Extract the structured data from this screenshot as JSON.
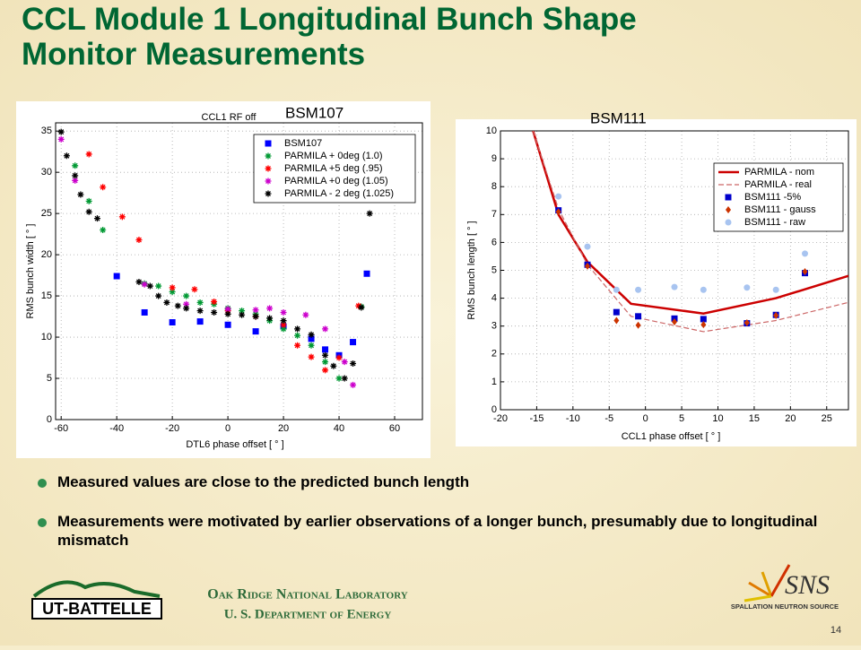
{
  "title": "CCL Module 1 Longitudinal Bunch Shape Monitor Measurements",
  "chart_data": [
    {
      "type": "scatter",
      "label": "BSM107",
      "title": "CCL1 RF off",
      "xlabel": "DTL6 phase offset [ ° ]",
      "ylabel": "RMS bunch width [ ° ]",
      "xlim": [
        -62,
        70
      ],
      "ylim": [
        0,
        36
      ],
      "xticks": [
        -60,
        -40,
        -20,
        0,
        20,
        40,
        60
      ],
      "yticks": [
        0,
        5,
        10,
        15,
        20,
        25,
        30,
        35
      ],
      "grid": true,
      "legend": "upper right",
      "series": [
        {
          "name": "BSM107",
          "color": "#0000ff",
          "marker": "square",
          "x": [
            -40,
            -30,
            -20,
            -10,
            0,
            10,
            20,
            30,
            35,
            40,
            45,
            50
          ],
          "values": [
            17.4,
            13,
            11.8,
            11.9,
            11.5,
            10.7,
            11.3,
            9.8,
            8.5,
            7.8,
            9.4,
            17.7
          ]
        },
        {
          "name": "PARMILA + 0deg (1.0)",
          "color": "#009933",
          "marker": "star",
          "x": [
            -55,
            -50,
            -45,
            -30,
            -25,
            -20,
            -15,
            -10,
            -5,
            0,
            5,
            10,
            15,
            20,
            25,
            30,
            35,
            40,
            48
          ],
          "values": [
            30.8,
            26.5,
            23,
            16.5,
            16.2,
            15.5,
            15,
            14.2,
            14,
            13.5,
            13.2,
            12.8,
            12,
            11,
            10.2,
            9,
            7,
            5,
            13.7
          ]
        },
        {
          "name": "PARMILA +5 deg (.95)",
          "color": "#ff0000",
          "marker": "star",
          "x": [
            -50,
            -45,
            -38,
            -32,
            -20,
            -12,
            -5,
            0,
            10,
            20,
            25,
            30,
            35,
            40,
            47
          ],
          "values": [
            32.2,
            28.2,
            24.6,
            21.8,
            16,
            15.8,
            14.3,
            13.2,
            12.5,
            11.5,
            9,
            7.6,
            6,
            7.5,
            13.8
          ]
        },
        {
          "name": "PARMILA +0 deg (1.05)",
          "color": "#cc00cc",
          "marker": "star",
          "x": [
            -60,
            -55,
            -30,
            -15,
            0,
            10,
            15,
            20,
            28,
            35,
            42,
            45
          ],
          "values": [
            34,
            29,
            16.4,
            14,
            13.4,
            13.3,
            13.5,
            13,
            12.7,
            11,
            7,
            4.2
          ]
        },
        {
          "name": "PARMILA - 2 deg (1.025)",
          "color": "#000000",
          "marker": "star",
          "x": [
            -60,
            -58,
            -55,
            -53,
            -50,
            -47,
            -32,
            -28,
            -25,
            -22,
            -18,
            -15,
            -10,
            -5,
            0,
            5,
            10,
            15,
            20,
            25,
            30,
            35,
            38,
            42,
            45,
            48,
            51
          ],
          "values": [
            34.9,
            32,
            29.6,
            27.3,
            25.2,
            24.4,
            16.7,
            16.2,
            15,
            14.2,
            13.8,
            13.5,
            13.2,
            13,
            12.8,
            12.7,
            12.5,
            12.3,
            12,
            11,
            10.3,
            7.8,
            6.5,
            5,
            6.8,
            13.6,
            25
          ]
        }
      ]
    },
    {
      "type": "line",
      "label": "BSM111",
      "xlabel": "CCL1 phase offset [ ° ]",
      "ylabel": "RMS bunch length [ ° ]",
      "xlim": [
        -20,
        28
      ],
      "ylim": [
        0,
        10
      ],
      "xticks": [
        -20,
        -15,
        -10,
        -5,
        0,
        5,
        10,
        15,
        20,
        25
      ],
      "yticks": [
        0,
        1,
        2,
        3,
        4,
        5,
        6,
        7,
        8,
        9,
        10
      ],
      "grid": true,
      "legend": "upper right",
      "series": [
        {
          "name": "PARMILA - nom",
          "color": "#cc0000",
          "marker": "line",
          "x": [
            -15.5,
            -12,
            -8,
            -2,
            8,
            18,
            28
          ],
          "values": [
            10,
            7,
            5.3,
            3.8,
            3.45,
            4,
            4.8
          ]
        },
        {
          "name": "PARMILA - real",
          "color": "#cc6666",
          "marker": "dashed",
          "x": [
            -15.5,
            -12,
            -8,
            -2,
            8,
            18,
            28
          ],
          "values": [
            10,
            7.2,
            5.2,
            3.35,
            2.8,
            3.2,
            3.85
          ]
        },
        {
          "name": "BSM111 -5%",
          "color": "#0000cc",
          "marker": "square",
          "x": [
            -12,
            -8,
            -4,
            -1,
            4,
            8,
            14,
            18,
            22
          ],
          "values": [
            7.15,
            5.2,
            3.5,
            3.35,
            3.27,
            3.25,
            3.1,
            3.4,
            4.9
          ]
        },
        {
          "name": "BSM111 - gauss",
          "color": "#cc3300",
          "marker": "diamond",
          "x": [
            -12,
            -8,
            -4,
            -1,
            4,
            8,
            14,
            18,
            22
          ],
          "values": [
            7.1,
            5.15,
            3.2,
            3.03,
            3.15,
            3.05,
            3.12,
            3.38,
            4.95
          ]
        },
        {
          "name": "BSM111 - raw",
          "color": "#a8c4f0",
          "marker": "circle",
          "x": [
            -12,
            -8,
            -4,
            -1,
            4,
            8,
            14,
            18,
            22
          ],
          "values": [
            7.65,
            5.85,
            4.3,
            4.3,
            4.4,
            4.3,
            4.38,
            4.3,
            5.6
          ]
        }
      ]
    }
  ],
  "bullets": [
    "Measured values are close to the predicted bunch length",
    "Measurements were motivated by earlier observations of a longer bunch, presumably due to longitudinal mismatch"
  ],
  "footer": {
    "lab": "Oak Ridge National Laboratory",
    "dept": "U. S. Department of Energy",
    "page": "14",
    "left_logo": "UT-BATTELLE",
    "right_logo": "SNS",
    "right_logo_sub": "SPALLATION NEUTRON SOURCE"
  }
}
